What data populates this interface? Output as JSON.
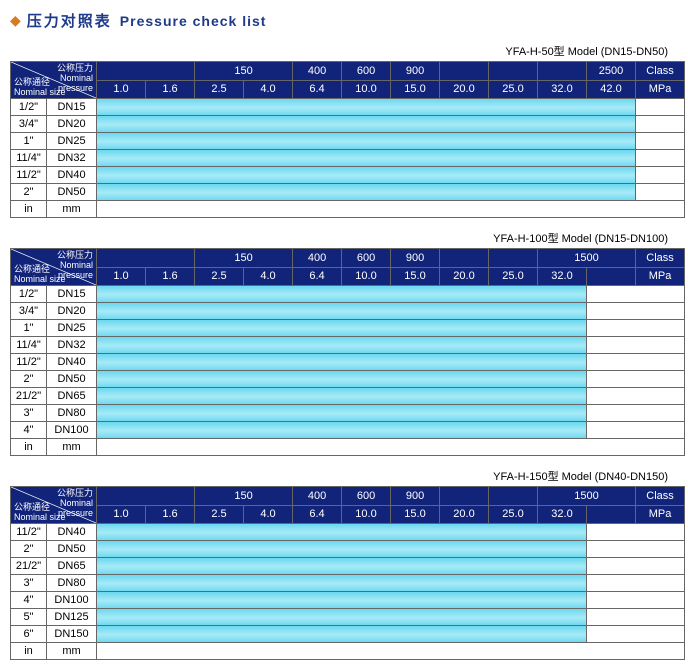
{
  "title_cn": "压力对照表",
  "title_en": "Pressure check list",
  "colors": {
    "header_bg": "#12247a",
    "header_fg": "#ffffff",
    "cyan_light": "#a8eaf7",
    "cyan_dark": "#6dd9f0",
    "border": "#666",
    "title_color": "#1e3a8a",
    "diamond": "#d87a1e"
  },
  "diag": {
    "top_cn": "公称压力",
    "top_en": "Nominal",
    "top_en2": "pressure",
    "bot_cn": "公称通径",
    "bot_en": "Nominal size"
  },
  "footer_in": "in",
  "footer_mm": "mm",
  "tables": [
    {
      "model": "YFA-H-50型  Model (DN15-DN50)",
      "top": [
        "",
        "",
        "150",
        "",
        "400",
        "600",
        "900",
        "",
        "",
        "",
        "2500",
        "Class"
      ],
      "mpa": [
        "1.0",
        "1.6",
        "2.5",
        "4.0",
        "6.4",
        "10.0",
        "15.0",
        "20.0",
        "25.0",
        "32.0",
        "42.0",
        "MPa"
      ],
      "spans": [
        2,
        1,
        2,
        1,
        1,
        1,
        1,
        1,
        1,
        1,
        1,
        1
      ],
      "rows": [
        [
          "1/2\"",
          "DN15",
          true,
          false
        ],
        [
          "3/4\"",
          "DN20",
          true,
          false
        ],
        [
          "1\"",
          "DN25",
          true,
          false
        ],
        [
          "11/4\"",
          "DN32",
          true,
          false
        ],
        [
          "11/2\"",
          "DN40",
          true,
          false
        ],
        [
          "2\"",
          "DN50",
          true,
          false
        ]
      ]
    },
    {
      "model": "YFA-H-100型  Model (DN15-DN100)",
      "top": [
        "",
        "",
        "150",
        "",
        "400",
        "600",
        "900",
        "",
        "",
        "1500",
        "",
        "Class"
      ],
      "mpa": [
        "1.0",
        "1.6",
        "2.5",
        "4.0",
        "6.4",
        "10.0",
        "15.0",
        "20.0",
        "25.0",
        "32.0",
        "",
        "MPa"
      ],
      "spans": [
        2,
        1,
        2,
        1,
        1,
        1,
        1,
        1,
        1,
        2,
        1,
        1
      ],
      "rows": [
        [
          "1/2\"",
          "DN15",
          true,
          false
        ],
        [
          "3/4\"",
          "DN20",
          true,
          false
        ],
        [
          "1\"",
          "DN25",
          true,
          false
        ],
        [
          "11/4\"",
          "DN32",
          true,
          false
        ],
        [
          "11/2\"",
          "DN40",
          true,
          false
        ],
        [
          "2\"",
          "DN50",
          true,
          false
        ],
        [
          "21/2\"",
          "DN65",
          true,
          false
        ],
        [
          "3\"",
          "DN80",
          true,
          false
        ],
        [
          "4\"",
          "DN100",
          true,
          false
        ]
      ]
    },
    {
      "model": "YFA-H-150型  Model (DN40-DN150)",
      "top": [
        "",
        "",
        "150",
        "",
        "400",
        "600",
        "900",
        "",
        "",
        "1500",
        "",
        "Class"
      ],
      "mpa": [
        "1.0",
        "1.6",
        "2.5",
        "4.0",
        "6.4",
        "10.0",
        "15.0",
        "20.0",
        "25.0",
        "32.0",
        "",
        "MPa"
      ],
      "spans": [
        2,
        1,
        2,
        1,
        1,
        1,
        1,
        1,
        1,
        2,
        1,
        1
      ],
      "rows": [
        [
          "11/2\"",
          "DN40",
          true,
          false
        ],
        [
          "2\"",
          "DN50",
          true,
          false
        ],
        [
          "21/2\"",
          "DN65",
          true,
          false
        ],
        [
          "3\"",
          "DN80",
          true,
          false
        ],
        [
          "4\"",
          "DN100",
          true,
          false
        ],
        [
          "5\"",
          "DN125",
          true,
          false
        ],
        [
          "6\"",
          "DN150",
          true,
          false
        ]
      ]
    }
  ]
}
